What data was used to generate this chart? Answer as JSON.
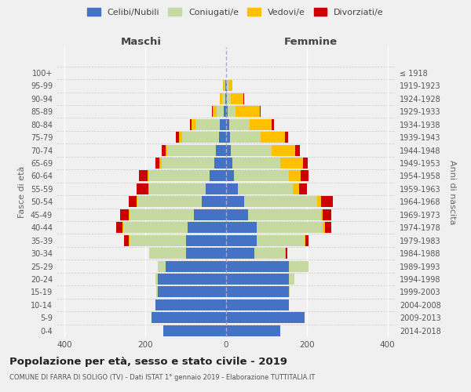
{
  "age_groups": [
    "0-4",
    "5-9",
    "10-14",
    "15-19",
    "20-24",
    "25-29",
    "30-34",
    "35-39",
    "40-44",
    "45-49",
    "50-54",
    "55-59",
    "60-64",
    "65-69",
    "70-74",
    "75-79",
    "80-84",
    "85-89",
    "90-94",
    "95-99",
    "100+"
  ],
  "birth_years": [
    "2014-2018",
    "2009-2013",
    "2004-2008",
    "1999-2003",
    "1994-1998",
    "1989-1993",
    "1984-1988",
    "1979-1983",
    "1974-1978",
    "1969-1973",
    "1964-1968",
    "1959-1963",
    "1954-1958",
    "1949-1953",
    "1944-1948",
    "1939-1943",
    "1934-1938",
    "1929-1933",
    "1924-1928",
    "1919-1923",
    "≤ 1918"
  ],
  "maschi": {
    "celibi": [
      155,
      185,
      175,
      170,
      170,
      150,
      100,
      100,
      95,
      80,
      60,
      50,
      40,
      30,
      25,
      18,
      15,
      5,
      2,
      1,
      0
    ],
    "coniugati": [
      0,
      0,
      0,
      3,
      5,
      20,
      90,
      140,
      160,
      160,
      160,
      140,
      150,
      130,
      120,
      90,
      60,
      18,
      8,
      3,
      0
    ],
    "vedovi": [
      0,
      0,
      0,
      0,
      0,
      0,
      0,
      2,
      2,
      2,
      2,
      2,
      5,
      5,
      5,
      8,
      10,
      10,
      5,
      3,
      0
    ],
    "divorziati": [
      0,
      0,
      0,
      0,
      0,
      0,
      0,
      10,
      15,
      20,
      20,
      30,
      20,
      10,
      10,
      8,
      5,
      2,
      0,
      0,
      0
    ]
  },
  "femmine": {
    "nubili": [
      135,
      195,
      155,
      155,
      155,
      155,
      70,
      75,
      75,
      55,
      45,
      30,
      20,
      15,
      12,
      10,
      8,
      4,
      2,
      1,
      0
    ],
    "coniugate": [
      0,
      0,
      0,
      3,
      15,
      50,
      75,
      120,
      165,
      180,
      180,
      135,
      135,
      120,
      100,
      75,
      50,
      20,
      10,
      5,
      0
    ],
    "vedove": [
      0,
      0,
      0,
      0,
      0,
      0,
      2,
      2,
      5,
      5,
      10,
      15,
      30,
      55,
      60,
      60,
      55,
      60,
      30,
      10,
      0
    ],
    "divorziate": [
      0,
      0,
      0,
      0,
      0,
      0,
      5,
      8,
      15,
      20,
      30,
      20,
      20,
      12,
      10,
      8,
      5,
      2,
      2,
      0,
      0
    ]
  },
  "colors": {
    "celibi_nubili": "#4472c4",
    "coniugati": "#c5d9a0",
    "vedovi": "#ffc000",
    "divorziati": "#cc0000"
  },
  "title": "Popolazione per età, sesso e stato civile - 2019",
  "subtitle": "COMUNE DI FARRA DI SOLIGO (TV) - Dati ISTAT 1° gennaio 2019 - Elaborazione TUTTITALIA.IT",
  "xlabel_left": "Maschi",
  "xlabel_right": "Femmine",
  "ylabel_left": "Fasce di età",
  "ylabel_right": "Anni di nascita",
  "xlim": 420,
  "legend_labels": [
    "Celibi/Nubili",
    "Coniugati/e",
    "Vedovi/e",
    "Divorziati/e"
  ],
  "background_color": "#f0f0f0"
}
